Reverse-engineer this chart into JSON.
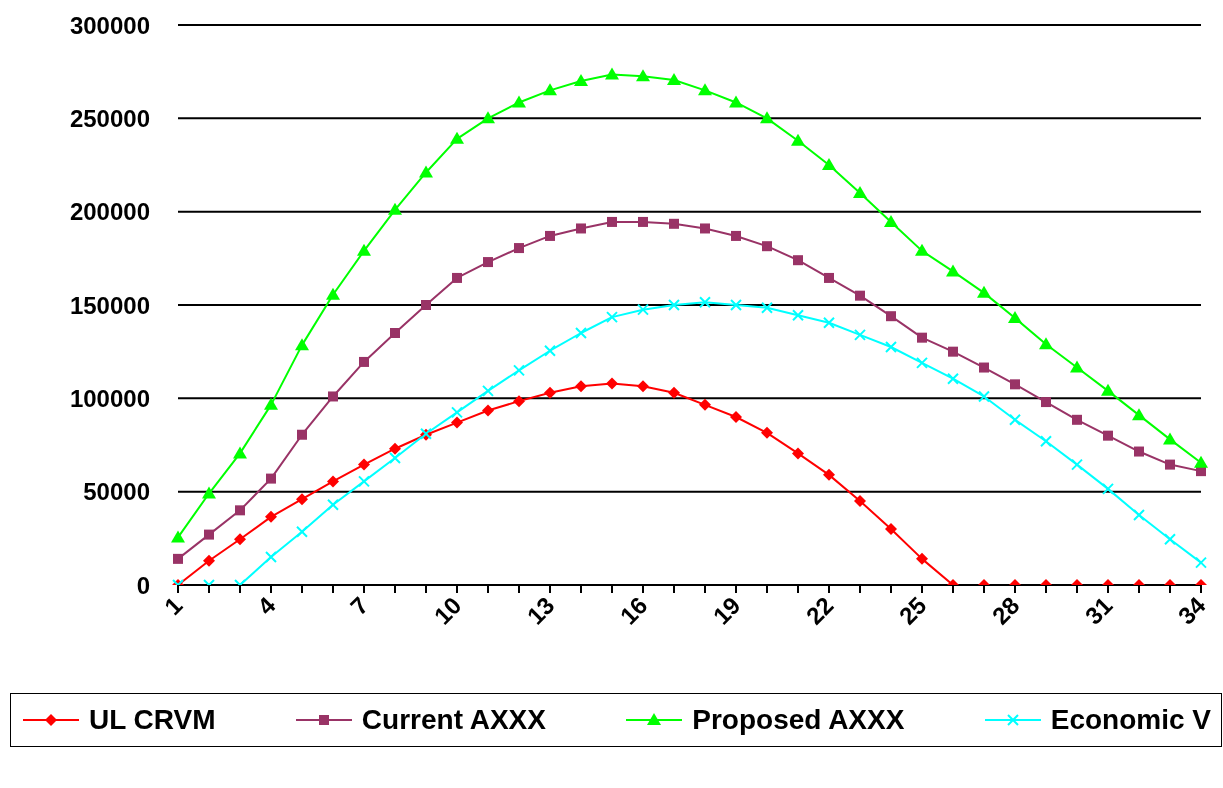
{
  "chart_data": {
    "type": "line",
    "categories": [
      "1",
      null,
      null,
      "4",
      null,
      null,
      "7",
      null,
      null,
      "10",
      null,
      null,
      "13",
      null,
      null,
      "16",
      null,
      null,
      "19",
      null,
      null,
      "22",
      null,
      null,
      "25",
      null,
      null,
      "28",
      null,
      null,
      "31",
      null,
      null,
      "34"
    ],
    "series": [
      {
        "name": "UL CRVM",
        "color": "#ff0000",
        "marker": "diamond",
        "values": [
          0,
          13000,
          24500,
          36500,
          46000,
          55500,
          64500,
          73000,
          80500,
          87000,
          93500,
          98500,
          103000,
          106500,
          108000,
          106500,
          103000,
          96500,
          90000,
          81500,
          70500,
          59000,
          45000,
          30000,
          14000,
          0,
          0,
          0,
          0,
          0,
          0,
          0,
          0,
          0
        ]
      },
      {
        "name": "Current AXXX",
        "color": "#993366",
        "marker": "square",
        "values": [
          14000,
          27000,
          40000,
          57000,
          80500,
          101000,
          119500,
          135000,
          150000,
          164500,
          173000,
          180500,
          187000,
          191000,
          194500,
          194500,
          193500,
          191000,
          187000,
          181500,
          174000,
          164500,
          155000,
          144000,
          132500,
          125000,
          116500,
          107500,
          98000,
          88500,
          80000,
          71500,
          64500,
          61000
        ]
      },
      {
        "name": "Proposed AXXX",
        "color": "#00ff00",
        "marker": "triangle",
        "values": [
          25500,
          49000,
          70500,
          96500,
          128500,
          155500,
          179000,
          201000,
          221000,
          239000,
          250000,
          258500,
          265000,
          270000,
          273500,
          272500,
          270500,
          265000,
          258500,
          250000,
          238000,
          225000,
          210000,
          194500,
          179000,
          168000,
          156500,
          143000,
          129000,
          116500,
          104000,
          91000,
          78000,
          65500
        ]
      },
      {
        "name": "Economic V",
        "color": "#00ffff",
        "marker": "cross",
        "values": [
          0,
          0,
          0,
          15000,
          28500,
          43000,
          55500,
          68000,
          81000,
          92500,
          104000,
          115000,
          125500,
          135000,
          143500,
          147500,
          150000,
          151500,
          150000,
          148500,
          144500,
          140500,
          134000,
          127500,
          119000,
          110500,
          101000,
          88500,
          77000,
          64500,
          51500,
          37500,
          24500,
          12000
        ]
      }
    ],
    "ylim": [
      0,
      300000
    ],
    "yticks": [
      0,
      50000,
      100000,
      150000,
      200000,
      250000,
      300000
    ],
    "grid": "y",
    "legend": "bottom"
  }
}
